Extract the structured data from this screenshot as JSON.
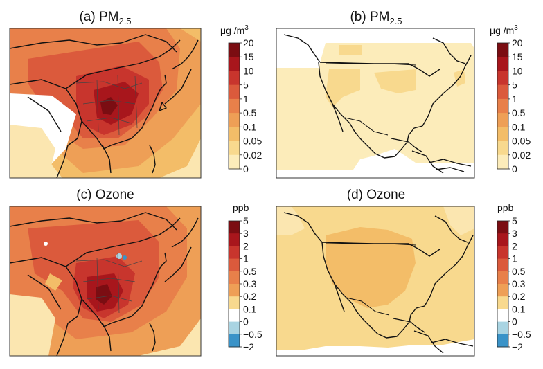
{
  "chart_data": [
    {
      "type": "heatmap",
      "panel_label": "(a)",
      "title": "PM2.5",
      "title_main": "PM",
      "title_sub": "2.5",
      "region": "East Asia",
      "unit": "μg /m3",
      "unit_main": "μg /m",
      "unit_sup": "3",
      "colorbar": {
        "ticks": [
          "20",
          "15",
          "10",
          "5",
          "1",
          "0.5",
          "0.1",
          "0.05",
          "0.02",
          "0"
        ],
        "colors": [
          "#7b0d12",
          "#a8161c",
          "#c8352d",
          "#db5a3c",
          "#e8804a",
          "#ee9f56",
          "#f3bd68",
          "#f8d98e",
          "#fcecba"
        ]
      }
    },
    {
      "type": "heatmap",
      "panel_label": "(b)",
      "title": "PM2.5",
      "title_main": "PM",
      "title_sub": "2.5",
      "region": "North America",
      "unit": "μg /m3",
      "unit_main": "μg /m",
      "unit_sup": "3",
      "colorbar": {
        "ticks": [
          "20",
          "15",
          "10",
          "5",
          "1",
          "0.5",
          "0.1",
          "0.05",
          "0.02",
          "0"
        ],
        "colors": [
          "#7b0d12",
          "#a8161c",
          "#c8352d",
          "#db5a3c",
          "#e8804a",
          "#ee9f56",
          "#f3bd68",
          "#f8d98e",
          "#fcecba"
        ]
      }
    },
    {
      "type": "heatmap",
      "panel_label": "(c)",
      "title": "Ozone",
      "region": "East Asia",
      "unit": "ppb",
      "colorbar": {
        "ticks": [
          "5",
          "3",
          "2",
          "1",
          "0.5",
          "0.3",
          "0.2",
          "0.1",
          "0",
          "−0.5",
          "−2"
        ],
        "colors": [
          "#7b0d12",
          "#a8161c",
          "#c8352d",
          "#db5a3c",
          "#e8804a",
          "#ee9f56",
          "#f8d98e",
          "#ffffff",
          "#a9d4e2",
          "#3a93c8"
        ]
      }
    },
    {
      "type": "heatmap",
      "panel_label": "(d)",
      "title": "Ozone",
      "region": "North America",
      "unit": "ppb",
      "colorbar": {
        "ticks": [
          "5",
          "3",
          "2",
          "1",
          "0.5",
          "0.3",
          "0.2",
          "0.1",
          "0",
          "−0.5",
          "−2"
        ],
        "colors": [
          "#7b0d12",
          "#a8161c",
          "#c8352d",
          "#db5a3c",
          "#e8804a",
          "#ee9f56",
          "#f8d98e",
          "#ffffff",
          "#a9d4e2",
          "#3a93c8"
        ]
      }
    }
  ]
}
